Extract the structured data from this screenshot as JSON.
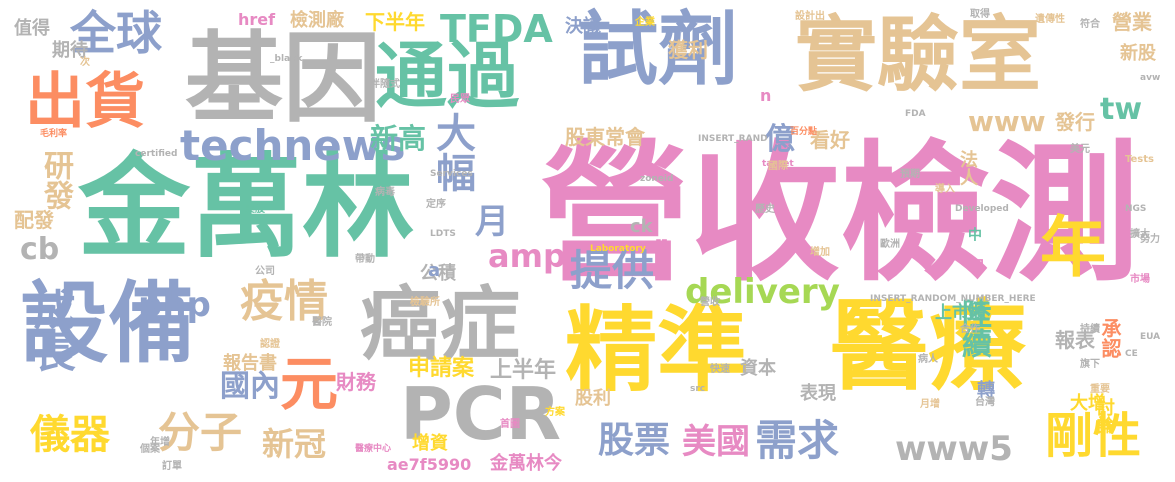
{
  "colors": {
    "green": "#66c2a5",
    "orange": "#fc8d62",
    "blue": "#8da0cb",
    "pink": "#e78ac3",
    "lime": "#a6d854",
    "yellow": "#ffd92f",
    "tan": "#e5c494",
    "gray": "#b3b3b3"
  },
  "words": [
    {
      "text": "營收檢測",
      "color": "pink"
    },
    {
      "text": "金萬林",
      "color": "green"
    },
    {
      "text": "精準",
      "color": "yellow"
    },
    {
      "text": "醫療",
      "color": "yellow"
    },
    {
      "text": "基因",
      "color": "gray"
    },
    {
      "text": "實驗室",
      "color": "tan"
    },
    {
      "text": "試劑",
      "color": "blue"
    },
    {
      "text": "通過",
      "color": "green"
    },
    {
      "text": "設備",
      "color": "blue"
    },
    {
      "text": "癌症",
      "color": "gray"
    },
    {
      "text": "PCR",
      "color": "gray"
    },
    {
      "text": "元",
      "color": "orange"
    },
    {
      "text": "出貨",
      "color": "orange"
    },
    {
      "text": "全球",
      "color": "blue"
    },
    {
      "text": "年",
      "color": "yellow"
    },
    {
      "text": "technews",
      "color": "blue"
    },
    {
      "text": "TFDA",
      "color": "green"
    },
    {
      "text": "疫情",
      "color": "tan"
    },
    {
      "text": "提供",
      "color": "blue"
    },
    {
      "text": "成長",
      "color": "blue"
    },
    {
      "text": "delivery",
      "color": "lime"
    },
    {
      "text": "www",
      "color": "tan"
    },
    {
      "text": "大幅",
      "color": "blue"
    },
    {
      "text": "php",
      "color": "blue"
    },
    {
      "text": "amp",
      "color": "pink"
    },
    {
      "text": "剛性",
      "color": "yellow"
    },
    {
      "text": "www5",
      "color": "gray"
    },
    {
      "text": "分子",
      "color": "tan"
    },
    {
      "text": "儀器",
      "color": "yellow"
    },
    {
      "text": "需求",
      "color": "blue"
    },
    {
      "text": "股票",
      "color": "blue"
    },
    {
      "text": "美國",
      "color": "pink"
    },
    {
      "text": "新冠",
      "color": "tan"
    },
    {
      "text": "國內",
      "color": "blue"
    },
    {
      "text": "陸續",
      "color": "green"
    },
    {
      "text": "億",
      "color": "blue"
    },
    {
      "text": "新高",
      "color": "green"
    },
    {
      "text": "研發",
      "color": "tan"
    },
    {
      "text": "cb",
      "color": "gray"
    },
    {
      "text": "月",
      "color": "blue"
    },
    {
      "text": "tw",
      "color": "green"
    },
    {
      "text": "ae7f5990",
      "color": "pink"
    },
    {
      "text": "股東常會",
      "color": "tan"
    },
    {
      "text": "看好",
      "color": "tan"
    },
    {
      "text": "發行",
      "color": "tan"
    },
    {
      "text": "法人",
      "color": "tan"
    },
    {
      "text": "上市櫃",
      "color": "green"
    },
    {
      "text": "報表",
      "color": "gray"
    },
    {
      "text": "承認",
      "color": "orange"
    },
    {
      "text": "上半年",
      "color": "gray"
    },
    {
      "text": "申請案",
      "color": "yellow"
    },
    {
      "text": "財務",
      "color": "pink"
    },
    {
      "text": "報告書",
      "color": "tan"
    },
    {
      "text": "資本",
      "color": "gray"
    },
    {
      "text": "表現",
      "color": "gray"
    },
    {
      "text": "大增",
      "color": "yellow"
    },
    {
      "text": "討論",
      "color": "yellow"
    },
    {
      "text": "轉",
      "color": "blue"
    },
    {
      "text": "增資",
      "color": "yellow"
    },
    {
      "text": "股利",
      "color": "tan"
    },
    {
      "text": "金萬林今",
      "color": "pink"
    },
    {
      "text": "公積",
      "color": "gray"
    },
    {
      "text": "檢測廠",
      "color": "tan"
    },
    {
      "text": "下半年",
      "color": "yellow"
    },
    {
      "text": "決議",
      "color": "blue"
    },
    {
      "text": "獲利",
      "color": "tan"
    },
    {
      "text": "營業",
      "color": "tan"
    },
    {
      "text": "新股",
      "color": "tan"
    },
    {
      "text": "值得",
      "color": "gray"
    },
    {
      "text": "期待",
      "color": "gray"
    },
    {
      "text": "配發",
      "color": "tan"
    },
    {
      "text": "href",
      "color": "pink"
    },
    {
      "text": "中",
      "color": "green"
    },
    {
      "text": "日",
      "color": "pink"
    },
    {
      "text": "股",
      "color": "pink"
    },
    {
      "text": "ck",
      "color": "gray"
    },
    {
      "text": "a",
      "color": "blue"
    },
    {
      "text": "n",
      "color": "pink"
    },
    {
      "text": "INSERT_RANDOM_NUMBER_HERE",
      "color": "gray"
    },
    {
      "text": "INSERT_RAND",
      "color": "gray"
    },
    {
      "text": "Laboratory",
      "color": "yellow"
    },
    {
      "text": "Developed",
      "color": "gray"
    },
    {
      "text": "Services",
      "color": "gray"
    },
    {
      "text": "certified",
      "color": "gray"
    },
    {
      "text": "_blank",
      "color": "gray"
    },
    {
      "text": "target",
      "color": "pink"
    },
    {
      "text": "zoneid",
      "color": "gray"
    },
    {
      "text": "Tests",
      "color": "tan"
    },
    {
      "text": "EUA",
      "color": "gray"
    },
    {
      "text": "LDTS",
      "color": "gray"
    },
    {
      "text": "FDA",
      "color": "gray"
    },
    {
      "text": "NGS",
      "color": "gray"
    },
    {
      "text": "CE",
      "color": "gray"
    },
    {
      "text": "src",
      "color": "gray"
    },
    {
      "text": "avw",
      "color": "gray"
    },
    {
      "text": "醫療中心",
      "color": "pink"
    },
    {
      "text": "毛利率",
      "color": "orange"
    },
    {
      "text": "百分點",
      "color": "orange"
    },
    {
      "text": "美元",
      "color": "gray"
    },
    {
      "text": "國際",
      "color": "tan"
    },
    {
      "text": "歷史",
      "color": "gray"
    },
    {
      "text": "病人",
      "color": "gray"
    },
    {
      "text": "定序",
      "color": "gray"
    },
    {
      "text": "病毒",
      "color": "gray"
    },
    {
      "text": "遺傳性",
      "color": "tan"
    },
    {
      "text": "設計出",
      "color": "tan"
    },
    {
      "text": "企業",
      "color": "yellow"
    },
    {
      "text": "旗下",
      "color": "gray"
    },
    {
      "text": "認證",
      "color": "tan"
    },
    {
      "text": "增加",
      "color": "tan"
    },
    {
      "text": "年增",
      "color": "gray"
    },
    {
      "text": "美股",
      "color": "green"
    },
    {
      "text": "歐洲",
      "color": "gray"
    },
    {
      "text": "台灣",
      "color": "gray"
    },
    {
      "text": "訂單",
      "color": "gray"
    },
    {
      "text": "個案",
      "color": "gray"
    },
    {
      "text": "方案",
      "color": "yellow"
    },
    {
      "text": "首圖",
      "color": "pink"
    },
    {
      "text": "營收",
      "color": "gray"
    },
    {
      "text": "月增",
      "color": "tan"
    },
    {
      "text": "預期",
      "color": "gray"
    },
    {
      "text": "合作",
      "color": "gray"
    },
    {
      "text": "公司",
      "color": "gray"
    },
    {
      "text": "重要",
      "color": "tan"
    },
    {
      "text": "擴大",
      "color": "gray"
    },
    {
      "text": "市場",
      "color": "pink"
    },
    {
      "text": "持續",
      "color": "gray"
    },
    {
      "text": "快速",
      "color": "gray"
    },
    {
      "text": "符合",
      "color": "gray"
    },
    {
      "text": "努力",
      "color": "gray"
    },
    {
      "text": "導入",
      "color": "tan"
    },
    {
      "text": "帶動",
      "color": "gray"
    },
    {
      "text": "檢驗所",
      "color": "tan"
    },
    {
      "text": "醫院",
      "color": "gray"
    },
    {
      "text": "民眾",
      "color": "pink"
    },
    {
      "text": "伴隨式",
      "color": "gray"
    },
    {
      "text": "取得",
      "color": "gray"
    },
    {
      "text": "次",
      "color": "tan"
    },
    {
      "text": "家",
      "color": "gray"
    }
  ]
}
